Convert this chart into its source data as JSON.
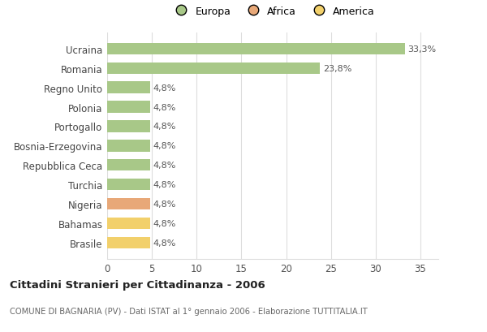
{
  "categories": [
    "Brasile",
    "Bahamas",
    "Nigeria",
    "Turchia",
    "Repubblica Ceca",
    "Bosnia-Erzegovina",
    "Portogallo",
    "Polonia",
    "Regno Unito",
    "Romania",
    "Ucraina"
  ],
  "values": [
    4.8,
    4.8,
    4.8,
    4.8,
    4.8,
    4.8,
    4.8,
    4.8,
    4.8,
    23.8,
    33.3
  ],
  "colors": [
    "#f2d06b",
    "#f2d06b",
    "#e8a878",
    "#a8c888",
    "#a8c888",
    "#a8c888",
    "#a8c888",
    "#a8c888",
    "#a8c888",
    "#a8c888",
    "#a8c888"
  ],
  "labels": [
    "4,8%",
    "4,8%",
    "4,8%",
    "4,8%",
    "4,8%",
    "4,8%",
    "4,8%",
    "4,8%",
    "4,8%",
    "23,8%",
    "33,3%"
  ],
  "legend": [
    {
      "label": "Europa",
      "color": "#a8c888"
    },
    {
      "label": "Africa",
      "color": "#e8a878"
    },
    {
      "label": "America",
      "color": "#f2d06b"
    }
  ],
  "title": "Cittadini Stranieri per Cittadinanza - 2006",
  "subtitle": "COMUNE DI BAGNARIA (PV) - Dati ISTAT al 1° gennaio 2006 - Elaborazione TUTTITALIA.IT",
  "xlim": [
    0,
    37
  ],
  "xticks": [
    0,
    5,
    10,
    15,
    20,
    25,
    30,
    35
  ],
  "background_color": "#ffffff",
  "grid_color": "#dddddd",
  "bar_height": 0.6
}
